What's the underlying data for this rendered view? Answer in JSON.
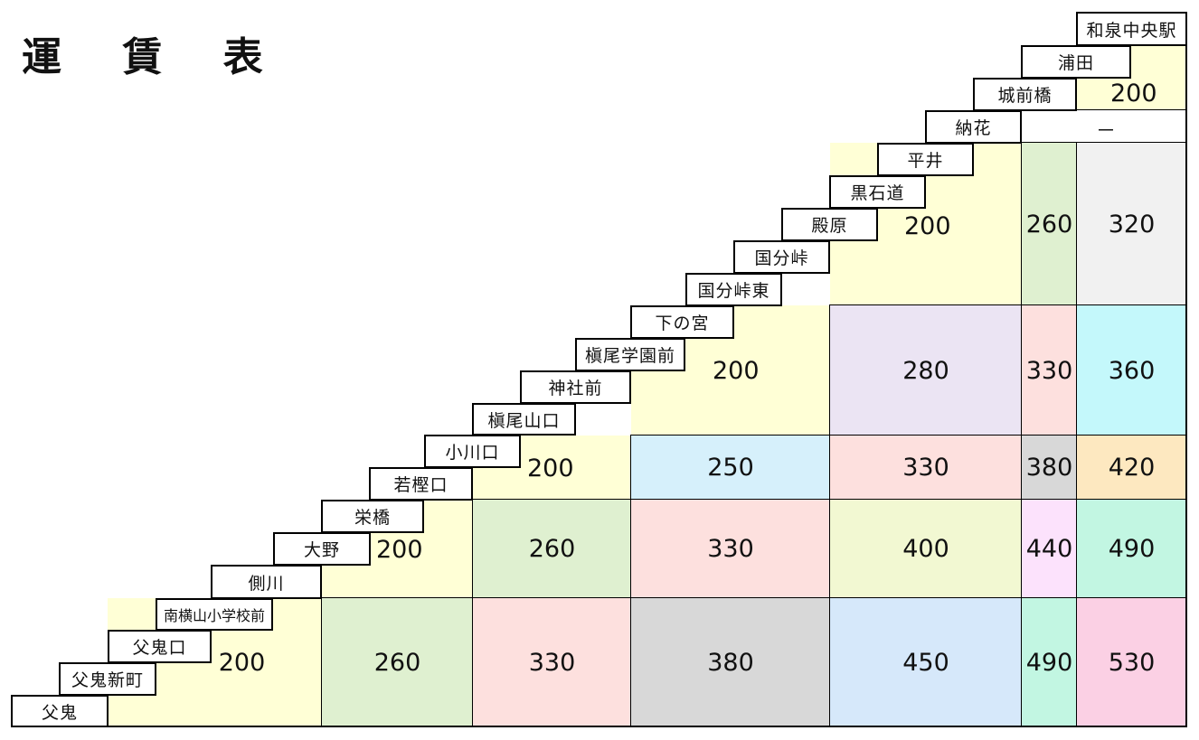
{
  "title": "運 賃 表",
  "stations": [
    {
      "name": "父鬼"
    },
    {
      "name": "父鬼新町"
    },
    {
      "name": "父鬼口"
    },
    {
      "name": "南横山小学校前"
    },
    {
      "name": "側川"
    },
    {
      "name": "大野"
    },
    {
      "name": "栄橋"
    },
    {
      "name": "若樫口"
    },
    {
      "name": "小川口"
    },
    {
      "name": "槇尾山口"
    },
    {
      "name": "神社前"
    },
    {
      "name": "槇尾学園前"
    },
    {
      "name": "下の宮"
    },
    {
      "name": "国分峠東"
    },
    {
      "name": "国分峠"
    },
    {
      "name": "殿原"
    },
    {
      "name": "黒石道"
    },
    {
      "name": "平井"
    },
    {
      "name": "納花"
    },
    {
      "name": "城前橋"
    },
    {
      "name": "浦田"
    },
    {
      "name": "和泉中央駅"
    }
  ],
  "fares": [
    {
      "fare": "200",
      "color": "#ffffd6"
    },
    {
      "fare": "260",
      "color": "#dff0d0"
    },
    {
      "fare": "330",
      "color": "#fde0de"
    },
    {
      "fare": "380",
      "color": "#d8d8d8"
    },
    {
      "fare": "450",
      "color": "#d6e8fa"
    },
    {
      "fare": "490",
      "color": "#c2f6e2"
    },
    {
      "fare": "530",
      "color": "#fbd0e4"
    },
    {
      "fare": "200",
      "color": "#ffffd6"
    },
    {
      "fare": "260",
      "color": "#dff0d0"
    },
    {
      "fare": "330",
      "color": "#fde0de"
    },
    {
      "fare": "400",
      "color": "#f2f8d2"
    },
    {
      "fare": "440",
      "color": "#fce2fc"
    },
    {
      "fare": "490",
      "color": "#c2f6e2"
    },
    {
      "fare": "200",
      "color": "#ffffd6"
    },
    {
      "fare": "250",
      "color": "#d6f0fb"
    },
    {
      "fare": "330",
      "color": "#fde0de"
    },
    {
      "fare": "380",
      "color": "#d8d8d8"
    },
    {
      "fare": "420",
      "color": "#fde8c0"
    },
    {
      "fare": "200",
      "color": "#ffffd6"
    },
    {
      "fare": "280",
      "color": "#ebe4f3"
    },
    {
      "fare": "330",
      "color": "#fde0de"
    },
    {
      "fare": "360",
      "color": "#c4f8fb"
    },
    {
      "fare": "200",
      "color": "#ffffd6"
    },
    {
      "fare": "260",
      "color": "#dff0d0"
    },
    {
      "fare": "320",
      "color": "#f1f1f1"
    },
    {
      "fare": "－",
      "color": "#ffffff"
    },
    {
      "fare": "200",
      "color": "#ffffd6"
    }
  ]
}
